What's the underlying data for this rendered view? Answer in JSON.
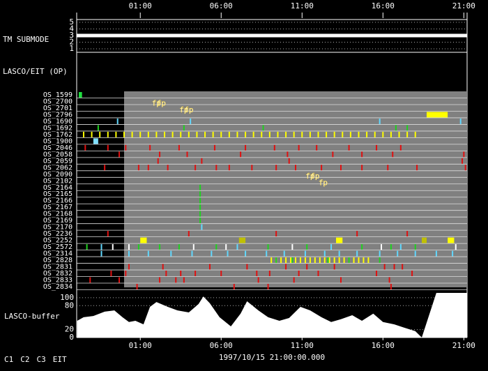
{
  "time_axis": {
    "xlim": [
      -2.93,
      21.2
    ],
    "ticks": [
      {
        "value": 1,
        "label": "01:00"
      },
      {
        "value": 6,
        "label": "06:00"
      },
      {
        "value": 11,
        "label": "11:00"
      },
      {
        "value": 16,
        "label": "16:00"
      },
      {
        "value": 21,
        "label": "21:00"
      }
    ]
  },
  "tm_submode": {
    "label": "TM SUBMODE",
    "ylim": [
      0.47,
      5.42
    ],
    "yticks": [
      1,
      2,
      3,
      4,
      5
    ],
    "value": 3
  },
  "op_label": "LASCO/EIT (OP)",
  "os_rows": [
    {
      "label": "OS_1599",
      "spans": [
        {
          "color": "#20e040",
          "start": -2.8,
          "end": -2.6
        }
      ]
    },
    {
      "label": "OS_2700",
      "tags": [
        {
          "text": "fp",
          "t": 2.0
        },
        {
          "text": "fp",
          "t": 2.3
        }
      ]
    },
    {
      "label": "OS_2701",
      "tags": [
        {
          "text": "fp",
          "t": 3.7
        },
        {
          "text": "fp",
          "t": 4.0
        }
      ]
    },
    {
      "label": "OS_2796",
      "spans": [
        {
          "color": "#ffff00",
          "start": 18.7,
          "end": 20.0
        }
      ]
    },
    {
      "label": "OS_1690",
      "events": [
        {
          "color": "#60d8ff",
          "times": [
            -0.4,
            4.1,
            15.8,
            20.8
          ]
        }
      ]
    },
    {
      "label": "OS_1692",
      "events": [
        {
          "color": "#20d020",
          "times": [
            -1.6,
            3.7,
            8.6,
            16.8,
            17.5
          ]
        }
      ]
    },
    {
      "label": "OS_1762",
      "events": [
        {
          "color": "#ffff00",
          "times": [
            -2.5,
            -2,
            -1.5,
            -1,
            -0.5,
            0,
            0.5,
            1,
            1.5,
            2,
            2.5,
            3,
            3.5,
            4,
            4.5,
            5,
            5.5,
            6,
            6.5,
            7,
            7.5,
            8,
            8.5,
            9,
            9.5,
            10,
            10.5,
            11,
            11.5,
            12,
            12.5,
            13,
            13.5,
            14,
            14.5,
            15,
            15.5,
            16,
            16.5,
            17,
            17.5,
            18
          ]
        }
      ]
    },
    {
      "label": "OS_1900",
      "spans": [
        {
          "color": "#80e0ff",
          "start": -1.9,
          "end": -1.6
        }
      ]
    },
    {
      "label": "OS_2046",
      "events": [
        {
          "color": "#e01010",
          "times": [
            -2.4,
            -1.0,
            0.1,
            1.6,
            3.4,
            5.6,
            7.5,
            9.3,
            10.8,
            11.9,
            13.9,
            15.6,
            17.1
          ]
        }
      ]
    },
    {
      "label": "OS_2058",
      "events": [
        {
          "color": "#e01010",
          "times": [
            -0.3,
            2.2,
            3.9,
            7.2,
            10.1,
            12.9,
            14.7,
            16.6,
            21.0
          ]
        }
      ]
    },
    {
      "label": "OS_2059",
      "events": [
        {
          "color": "#e01010",
          "times": [
            2.1,
            4.8,
            10.2,
            20.9
          ]
        }
      ]
    },
    {
      "label": "OS_2062",
      "events": [
        {
          "color": "#e01010",
          "times": [
            -1.2,
            0.9,
            1.5,
            2.7,
            4.4,
            5.7,
            6.5,
            7.9,
            9.4,
            10.6,
            12.2,
            13.4,
            14.7,
            16.3,
            18.1,
            21.1
          ]
        }
      ]
    },
    {
      "label": "OS_2090",
      "tags": [
        {
          "text": "fp",
          "t": 11.5
        },
        {
          "text": "fp",
          "t": 11.8
        }
      ]
    },
    {
      "label": "OS_2102",
      "tags": [
        {
          "text": "fp",
          "t": 12.3
        }
      ]
    },
    {
      "label": "OS_2164",
      "events": [
        {
          "color": "#20d020",
          "times": [
            4.7
          ]
        }
      ]
    },
    {
      "label": "OS_2165",
      "events": [
        {
          "color": "#20d020",
          "times": [
            4.7
          ]
        }
      ]
    },
    {
      "label": "OS_2166",
      "events": [
        {
          "color": "#20d020",
          "times": [
            4.7
          ]
        }
      ]
    },
    {
      "label": "OS_2167",
      "events": [
        {
          "color": "#20d020",
          "times": [
            4.7
          ]
        }
      ]
    },
    {
      "label": "OS_2168",
      "events": [
        {
          "color": "#20d020",
          "times": [
            4.7
          ]
        }
      ]
    },
    {
      "label": "OS_2169",
      "events": [
        {
          "color": "#20d020",
          "times": [
            4.7
          ]
        }
      ]
    },
    {
      "label": "OS_2170",
      "events": [
        {
          "color": "#60d8ff",
          "times": [
            4.8
          ]
        }
      ]
    },
    {
      "label": "OS_2236",
      "events": [
        {
          "color": "#e01010",
          "times": [
            -1.0,
            4.0,
            9.4,
            14.4,
            17.5
          ]
        }
      ]
    },
    {
      "label": "OS_2252",
      "spans": [
        {
          "color": "#ffff00",
          "start": 1.0,
          "end": 1.4
        },
        {
          "color": "#c0c000",
          "start": 7.1,
          "end": 7.5
        },
        {
          "color": "#ffff00",
          "start": 13.1,
          "end": 13.5
        },
        {
          "color": "#c0c000",
          "start": 18.4,
          "end": 18.7
        },
        {
          "color": "#ffff00",
          "start": 20.0,
          "end": 20.4
        }
      ]
    },
    {
      "label": "OS_2572",
      "events": [
        {
          "color": "#20d020",
          "times": [
            -2.3,
            0.9,
            2.2,
            3.4,
            5.7,
            8.9,
            11.3,
            14.7,
            16.5,
            18.0
          ]
        },
        {
          "color": "#60d8ff",
          "times": [
            -1.4,
            7.0,
            12.8,
            17.1
          ]
        },
        {
          "color": "#ffffff",
          "times": [
            -0.7,
            0.3,
            4.3,
            6.3,
            10.4,
            15.9,
            20.5
          ]
        }
      ]
    },
    {
      "label": "OS_2314",
      "events": [
        {
          "color": "#60d8ff",
          "times": [
            -1.4,
            0.3,
            1.5,
            2.9,
            4.2,
            5.4,
            6.4,
            7.5,
            8.8,
            9.9,
            11.2,
            12.4,
            13.3,
            14.4,
            15.8,
            16.9,
            18.0,
            19.3,
            20.3
          ]
        }
      ]
    },
    {
      "label": "OS_2828",
      "events": [
        {
          "color": "#ffff00",
          "times": [
            9.1,
            9.4,
            9.7,
            10.0,
            10.3,
            10.6,
            10.9,
            11.2,
            11.5,
            11.8,
            12.1,
            12.4,
            12.7,
            13.0,
            13.3,
            13.6,
            13.9,
            14.2,
            14.5,
            14.8,
            15.1
          ]
        },
        {
          "color": "#20d020",
          "times": [
            9.4,
            10.4,
            12.6,
            13.9,
            15.8
          ]
        }
      ]
    },
    {
      "label": "OS_2831",
      "events": [
        {
          "color": "#e01010",
          "times": [
            0.3,
            2.4,
            5.3,
            7.6,
            10.0,
            11.3,
            13.0,
            16.1,
            16.7,
            17.2
          ]
        }
      ]
    },
    {
      "label": "OS_2832",
      "events": [
        {
          "color": "#e01010",
          "times": [
            -0.8,
            0.1,
            2.6,
            3.5,
            4.4,
            6.0,
            8.2,
            9.0,
            10.8,
            12.0,
            15.6,
            17.8
          ]
        }
      ]
    },
    {
      "label": "OS_2833",
      "events": [
        {
          "color": "#e01010",
          "times": [
            -2.1,
            -0.3,
            2.2,
            3.2,
            3.7,
            8.3,
            10.5,
            13.4,
            16.4
          ]
        }
      ]
    },
    {
      "label": "OS_2834",
      "events": [
        {
          "color": "#e01010",
          "times": [
            0.8,
            6.8,
            8.9,
            16.5
          ]
        }
      ]
    }
  ],
  "buffer": {
    "label": "LASCO-buffer",
    "ylim": [
      0,
      112
    ],
    "yticks": [
      0,
      20,
      80,
      100
    ],
    "x": [
      -2.9,
      -2.5,
      -1.9,
      -1.2,
      -0.6,
      -0.1,
      0.3,
      0.7,
      1.2,
      1.6,
      2.0,
      2.7,
      3.3,
      4.0,
      4.6,
      4.9,
      5.3,
      5.9,
      6.6,
      7.2,
      7.6,
      8.3,
      8.9,
      9.6,
      10.2,
      10.9,
      11.5,
      12.2,
      12.8,
      13.4,
      14.1,
      14.7,
      15.4,
      16.0,
      16.7,
      17.3,
      18.0,
      18.4,
      19.3,
      21.2
    ],
    "values": [
      42,
      51,
      54,
      65,
      68,
      51,
      39,
      42,
      33,
      77,
      89,
      77,
      68,
      63,
      84,
      103,
      86,
      51,
      28,
      60,
      91,
      68,
      51,
      42,
      49,
      77,
      68,
      51,
      39,
      46,
      56,
      42,
      60,
      39,
      33,
      25,
      16,
      0,
      112,
      112
    ]
  },
  "date_label": "1997/10/15 21:00:00.000",
  "legend": [
    {
      "name": "C1",
      "color": "#ff2020"
    },
    {
      "name": "C2",
      "color": "#20e020"
    },
    {
      "name": "C3",
      "color": "#ffffff"
    },
    {
      "name": "EIT",
      "color": "#ffffff"
    }
  ]
}
